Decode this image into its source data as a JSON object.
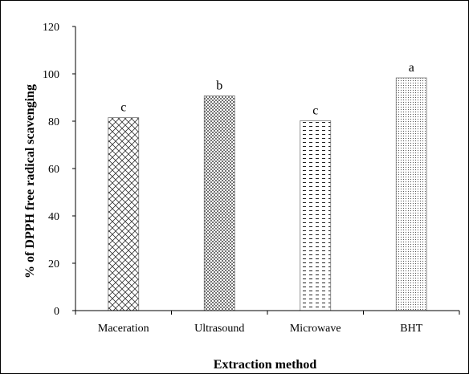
{
  "chart_data": {
    "type": "bar",
    "categories": [
      "Maceration",
      "Ultrasound",
      "Microwave",
      "BHT"
    ],
    "values": [
      81.5,
      90.7,
      80.2,
      98.3
    ],
    "significance_letters": [
      "c",
      "b",
      "c",
      "a"
    ],
    "xlabel": "Extraction method",
    "ylabel": "% of DPPH free radical scavenging",
    "ylim": [
      0,
      120
    ],
    "yticks": [
      0,
      20,
      40,
      60,
      80,
      100,
      120
    ],
    "grid": false,
    "legend": "none",
    "patterns": [
      "crosshatch",
      "dense-dots",
      "dashes",
      "fine-dots"
    ]
  }
}
